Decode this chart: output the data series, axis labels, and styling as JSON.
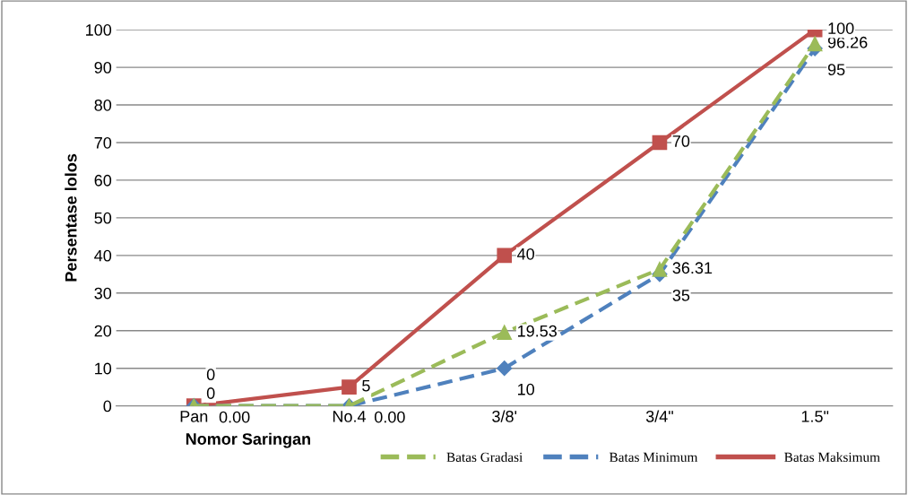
{
  "chart_data": {
    "type": "line",
    "xlabel": "Nomor Saringan",
    "ylabel": "Persentase lolos",
    "categories": [
      "Pan",
      "No.4",
      "3/8'",
      "3/4\"",
      "1.5\""
    ],
    "series": [
      {
        "name": "Batas Gradasi",
        "color": "#9bbb59",
        "values": [
          0.0,
          0.0,
          19.53,
          36.31,
          96.26
        ],
        "value_labels": [
          "0.00",
          "0.00",
          "19.53",
          "36.31",
          "96.26"
        ],
        "marker": "triangle",
        "line_style": "dashed"
      },
      {
        "name": "Batas Minimum",
        "color": "#4f81bd",
        "values": [
          0,
          0,
          10,
          35,
          95
        ],
        "value_labels": [
          "0",
          null,
          "10",
          "35",
          "95"
        ],
        "marker": "diamond",
        "line_style": "dashed"
      },
      {
        "name": "Batas Maksimum",
        "color": "#c0504d",
        "values": [
          0,
          5,
          40,
          70,
          100
        ],
        "value_labels": [
          "0",
          "5",
          "40",
          "70",
          "100"
        ],
        "marker": "square",
        "line_style": "solid"
      }
    ],
    "ylim": [
      0,
      100
    ],
    "yticks": [
      0,
      10,
      20,
      30,
      40,
      50,
      60,
      70,
      80,
      90,
      100
    ],
    "grid": "y",
    "legend": "bottom right"
  }
}
